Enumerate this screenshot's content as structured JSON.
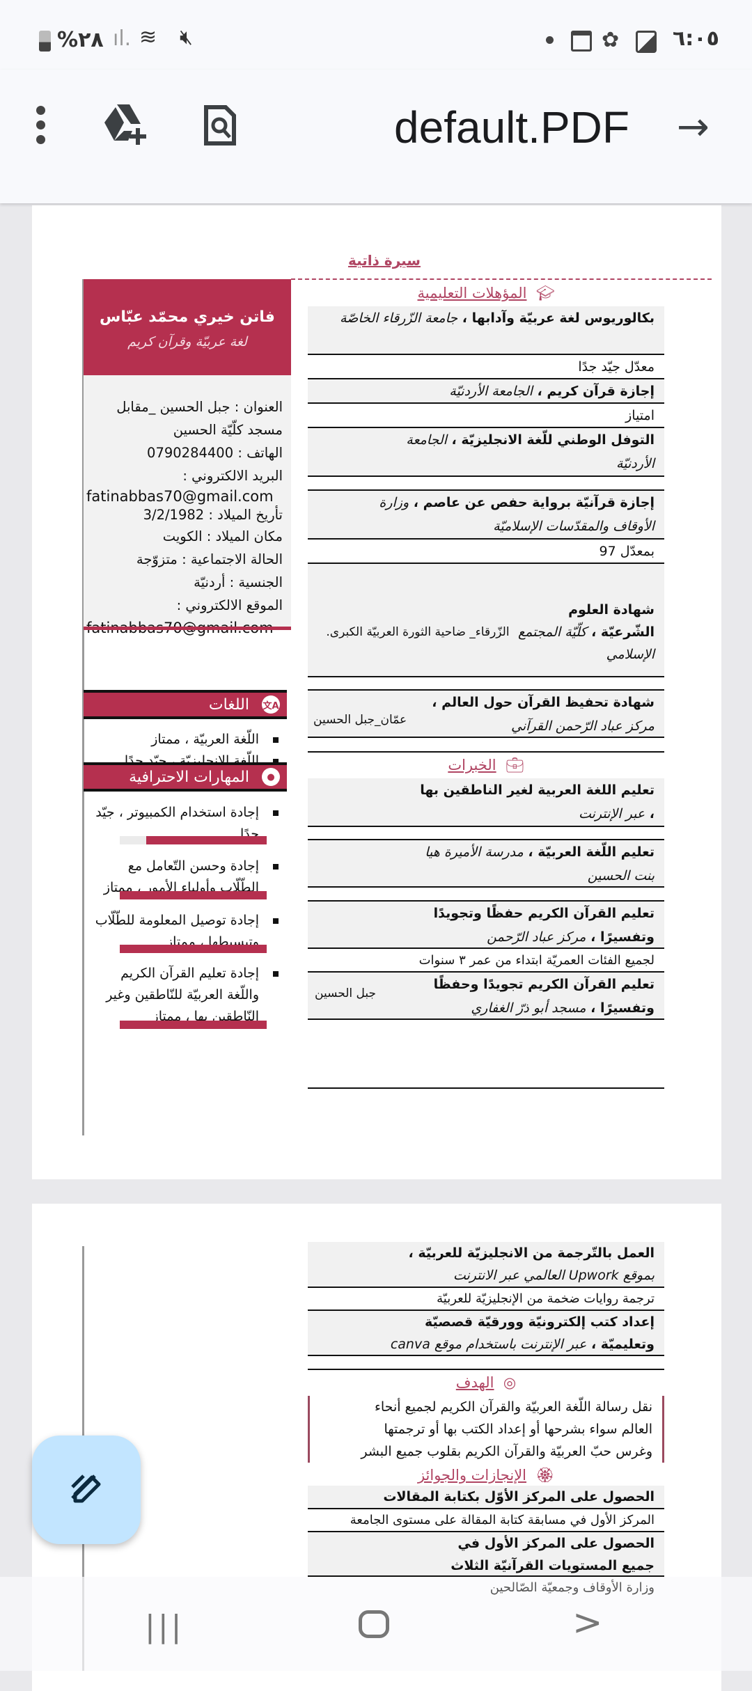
{
  "status_bar": {
    "time": "٦:٠٥",
    "battery": "%٢٨",
    "icons": [
      "dot-icon",
      "calendar-icon",
      "leaf-icon",
      "gallery-icon",
      "mute-icon",
      "wifi-icon",
      "signal-icon",
      "battery-icon"
    ]
  },
  "toolbar": {
    "title": "default.PDF",
    "icons": [
      "more-vert-icon",
      "drive-add-icon",
      "find-in-page-icon",
      "forward-arrow-icon"
    ]
  },
  "resume": {
    "doc_title": "سيرة ذاتية",
    "name": "فاتن خيري محمّد عبّاس",
    "subtitle": "لغة عربيّة وقرآن كريم",
    "contact": [
      "العنوان : جبل الحسين _مقابل",
      "مسجد كلّيّة الحسين",
      "الهاتف : 0790284400",
      "البريد الالكتروني :",
      "fatinabbas70@gmail.com",
      "تأريخ الميلاد : 3/2/1982",
      "مكان الميلاد : الكويت",
      "الحالة الاجتماعية : متزوّجة",
      "الجنسية : أردنيّة",
      "الموقع الالكتروني :",
      "fatinabbas70@gmail.com"
    ],
    "languages_title": "اللغات",
    "languages": [
      "اللّغة العربيّة ، ممتاز",
      "اللّغة الانجليزيّة ، جيّد جدًا"
    ],
    "skills_title": "المهارات الاحترافية",
    "skills": [
      {
        "label": "إجادة استخدام الكمبيوتر ، جيّد جدًا",
        "level": 0.82
      },
      {
        "label": "إجادة وحسن التّعامل مع الطّلّاب وأولياء الأمور ، ممتاز",
        "level": 1
      },
      {
        "label": "إجادة توصيل المعلومة للطّلّاب وتبسيطها ، ممتاز",
        "level": 1
      },
      {
        "label": "إجادة تعليم القرآن الكريم واللّغة العربيّة للنّاطقين وغير النّاطقين بها ، ممتاز",
        "level": 1
      }
    ],
    "education_title": "المؤهلات التعليمية",
    "education": [
      {
        "bold": "بكالوريوس لغة عربيّة وآدابها ، ",
        "italic": "جامعة الزّرقاء الخاصّة",
        "note": "معدّل جيّد جدًا"
      },
      {
        "bold": "إجازة قرآن كريم ، ",
        "italic": "الجامعة الأردنيّة",
        "note": "امتياز"
      },
      {
        "bold": "التوفل الوطني للّغة الانجليزيّة ، ",
        "italic": "الجامعة الأردنيّة"
      },
      {
        "bold": "إجازة قرآنيّة برواية حفص عن عاصم ، ",
        "italic": "وزارة الأوقاف والمقدّسات الإسلاميّة",
        "note": "بمعدّل 97"
      },
      {
        "bold": "شهادة العلوم الشّرعيّة ، ",
        "italic": "كلّيّة المجتمع الإسلامي",
        "location": "الزّرقاء_ ضاحية الثورة العربيّة الكبرى."
      },
      {
        "bold": "شهادة تحفيظ القرآن حول العالم ، ",
        "italic": "مركز عباد الرّحمن القرآني",
        "location": "عمّان_جبل الحسين"
      }
    ],
    "experience_title": "الخبرات",
    "experience": [
      {
        "bold": "تعليم اللغة العربية لغير الناطقين بها ، ",
        "italic": "عبر الإنترنت"
      },
      {
        "bold": "تعليم اللّغة العربيّة ، ",
        "italic": "مدرسة الأميرة هيا بنت الحسين"
      },
      {
        "bold": "تعليم القرآن الكريم حفظًا وتجويدًا وتفسيرًا ، ",
        "italic": "مركز عباد الرّحمن",
        "note": "لجميع الفئات العمريّة ابتداء من عمر ٣ سنوات"
      },
      {
        "bold": "تعليم القرآن الكريم تجويدًا وحفظًا وتفسيرًا ، ",
        "italic": "مسجد أبو ذرّ الغفاري",
        "location": "جبل الحسين"
      },
      {
        "bold": "العمل بالتّرجمة من الانجليزيّة للعربيّة ، ",
        "italic": "بموقع Upwork العالمي عبر الانترنت",
        "note": "ترجمة روايات ضخمة من الإنجليزيّة للعربيّة"
      },
      {
        "bold": "إعداد كتب إلكترونيّة وورقيّة قصصيّة وتعليميّة ، ",
        "italic": "عبر الإنترنت باستخدام موقع canva"
      }
    ],
    "objective_title": "الهدف",
    "objective": "نقل رسالة اللّغة العربيّة والقرآن الكريم لجميع أنحاء العالم سواء بشرحها أو إعداد الكتب بها أو ترجمتها وغرس حبّ العربيّة والقرآن الكريم بقلوب جميع البشر",
    "awards_title": "الإنجازات والجوائز",
    "awards": [
      {
        "bold": "الحصول على المركز الأوّل بكتابة المقالات",
        "note": "المركز الأول في مسابقة كتابة المقالة على مستوى الجامعة"
      },
      {
        "bold": "الحصول على المركز الأول في جميع المستويات القرآنيّة الثلاث",
        "note": "وزارة الأوقاف وجمعيّة الصّالحين"
      }
    ]
  },
  "colors": {
    "accent": "#b5304f",
    "heading": "#b04563",
    "fab": "#c2e5ff"
  }
}
